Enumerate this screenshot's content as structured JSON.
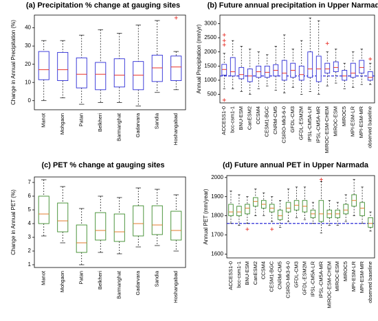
{
  "chart_data": [
    {
      "type": "box",
      "title": "(a) Precipitation % change at gauging sites",
      "y_label": "Change in Annual Precipitation (%)",
      "box_color": "#2b2bd6",
      "median_color": "#e8322b",
      "outlier_color": "#e8322b",
      "ylim": [
        -5,
        47
      ],
      "yticks": [
        0,
        10,
        20,
        30,
        40
      ],
      "categories": [
        "Manot",
        "Mohgaon",
        "Patan",
        "Belkheri",
        "Barmanghat",
        "Gadarvara",
        "Sandia",
        "Hoshangabad"
      ],
      "boxes": [
        {
          "min": 0,
          "q1": 11.5,
          "median": 17,
          "q3": 27,
          "max": 33
        },
        {
          "min": 1.5,
          "q1": 11,
          "median": 17,
          "q3": 26.5,
          "max": 33
        },
        {
          "min": -2,
          "q1": 7,
          "median": 14.5,
          "q3": 23.5,
          "max": 36
        },
        {
          "min": -1,
          "q1": 6,
          "median": 14.5,
          "q3": 21,
          "max": 39
        },
        {
          "min": -1,
          "q1": 7.5,
          "median": 14,
          "q3": 23,
          "max": 37
        },
        {
          "min": -3,
          "q1": 6,
          "median": 14,
          "q3": 21.5,
          "max": 41.5
        },
        {
          "min": 4.5,
          "q1": 10.5,
          "median": 18,
          "q3": 25,
          "max": 44
        },
        {
          "min": 6,
          "q1": 11,
          "median": 18.5,
          "q3": 24.5,
          "max": 27,
          "outliers": [
            45.5
          ]
        }
      ]
    },
    {
      "type": "box",
      "title": "(b) Future annual precipitation in Upper Narmada",
      "y_label": "Annual Precipitation (mm/yr)",
      "box_color": "#2b2bd6",
      "median_color": "#e8322b",
      "outlier_color": "#e8322b",
      "reference_line": 1150,
      "reference_color": "#2b2bd6",
      "ylim": [
        200,
        3300
      ],
      "yticks": [
        500,
        1000,
        1500,
        2000,
        2500,
        3000
      ],
      "categories": [
        "ACCESS1-0",
        "bcc-csm1-1",
        "BNU-ESM",
        "CanESM2",
        "CCSM4",
        "CESM1-BGC",
        "CNRM-CM5",
        "CSIRO-Mk3-6-0",
        "GFDL-CM3",
        "GFDL-ESM2M",
        "IPSL-CM5A-LR",
        "IPSL-CM5A-MR",
        "MIROC-ESM-CHEM",
        "MIROC-ESM",
        "MIROC5",
        "MPI-ESM-LR",
        "MPI-ESM-MR",
        "observed baseline"
      ],
      "boxes": [
        {
          "min": 700,
          "q1": 1180,
          "median": 1380,
          "q3": 1560,
          "max": 1950,
          "outliers": [
            2250,
            2400,
            2600,
            300
          ]
        },
        {
          "min": 700,
          "q1": 1150,
          "median": 1300,
          "q3": 1800,
          "max": 2400
        },
        {
          "min": 600,
          "q1": 1050,
          "median": 1200,
          "q3": 1450,
          "max": 2200
        },
        {
          "min": 500,
          "q1": 950,
          "median": 1150,
          "q3": 1400,
          "max": 2100
        },
        {
          "min": 700,
          "q1": 1100,
          "median": 1300,
          "q3": 1500,
          "max": 2000
        },
        {
          "min": 800,
          "q1": 1100,
          "median": 1280,
          "q3": 1500,
          "max": 1900
        },
        {
          "min": 650,
          "q1": 1150,
          "median": 1350,
          "q3": 1550,
          "max": 2200
        },
        {
          "min": 550,
          "q1": 1000,
          "median": 1250,
          "q3": 1700,
          "max": 2600
        },
        {
          "min": 750,
          "q1": 1100,
          "median": 1350,
          "q3": 1600,
          "max": 2100
        },
        {
          "min": 500,
          "q1": 1000,
          "median": 1200,
          "q3": 1500,
          "max": 2400
        },
        {
          "min": 600,
          "q1": 1100,
          "median": 1400,
          "q3": 2000,
          "max": 3200
        },
        {
          "min": 500,
          "q1": 950,
          "median": 1400,
          "q3": 1850,
          "max": 3100
        },
        {
          "min": 800,
          "q1": 1250,
          "median": 1400,
          "q3": 1600,
          "max": 2000,
          "outliers": [
            2300
          ]
        },
        {
          "min": 900,
          "q1": 1300,
          "median": 1450,
          "q3": 1650,
          "max": 2100
        },
        {
          "min": 700,
          "q1": 1000,
          "median": 1150,
          "q3": 1350,
          "max": 1600
        },
        {
          "min": 750,
          "q1": 1100,
          "median": 1250,
          "q3": 1600,
          "max": 2000
        },
        {
          "min": 850,
          "q1": 1250,
          "median": 1450,
          "q3": 1700,
          "max": 2100
        },
        {
          "min": 850,
          "q1": 1000,
          "median": 1100,
          "q3": 1300,
          "max": 1600,
          "outliers": [
            1750
          ]
        }
      ]
    },
    {
      "type": "box",
      "title": "(c) PET % change at gauging sites",
      "y_label": "Change in Annual PET (%)",
      "box_color": "#3a8a2a",
      "median_color": "#e07b2b",
      "outlier_color": "#e8322b",
      "ylim": [
        0.8,
        7.4
      ],
      "yticks": [
        1,
        2,
        3,
        4,
        5,
        6,
        7
      ],
      "categories": [
        "Manot",
        "Mohgaon",
        "Patan",
        "Belkheri",
        "Barmanghat",
        "Gadarvara",
        "Sandia",
        "Hoshangabad"
      ],
      "boxes": [
        {
          "min": 3.1,
          "q1": 4,
          "median": 4.7,
          "q3": 6,
          "max": 7.2
        },
        {
          "min": 2.6,
          "q1": 3.4,
          "median": 4.2,
          "q3": 5.5,
          "max": 6.7
        },
        {
          "min": 1,
          "q1": 1.9,
          "median": 2.6,
          "q3": 3.9,
          "max": 5.1
        },
        {
          "min": 1.9,
          "q1": 2.8,
          "median": 3.5,
          "q3": 4.8,
          "max": 6
        },
        {
          "min": 1.8,
          "q1": 2.7,
          "median": 3.4,
          "q3": 4.7,
          "max": 5.9
        },
        {
          "min": 2.3,
          "q1": 3.1,
          "median": 4,
          "q3": 5.3,
          "max": 6.6
        },
        {
          "min": 2.4,
          "q1": 3.2,
          "median": 3.9,
          "q3": 5.3,
          "max": 6.5
        },
        {
          "min": 2,
          "q1": 2.8,
          "median": 3.5,
          "q3": 4.9,
          "max": 6.1
        }
      ]
    },
    {
      "type": "box",
      "title": "(d) Future annual PET in Upper Narmada",
      "y_label": "Annual PET (mm/year)",
      "box_color": "#3a8a2a",
      "median_color": "#e07b2b",
      "outlier_color": "#e8322b",
      "reference_line": 1760,
      "reference_color": "#2b2bd6",
      "ylim": [
        1580,
        2010
      ],
      "yticks": [
        1600,
        1700,
        1800,
        1900,
        2000
      ],
      "categories": [
        "ACCESS1-0",
        "bcc-csm1-1",
        "BNU-ESM",
        "CanESM2",
        "CCSM4",
        "CESM1-BGC",
        "CNRM-CM5",
        "CSIRO-Mk3-6-0",
        "GFDL-CM3",
        "GFDL-ESM2M",
        "IPSL-CM5A-LR",
        "IPSL-CM5A-MR",
        "MIROC-ESM-CHEM",
        "MIROC-ESM",
        "MIROC5",
        "MPI-ESM-LR",
        "MPI-ESM-MR",
        "observed baseline"
      ],
      "boxes": [
        {
          "min": 1760,
          "q1": 1800,
          "median": 1820,
          "q3": 1860,
          "max": 1930
        },
        {
          "min": 1750,
          "q1": 1800,
          "median": 1820,
          "q3": 1850,
          "max": 1910
        },
        {
          "min": 1760,
          "q1": 1810,
          "median": 1840,
          "q3": 1860,
          "max": 1900,
          "outliers": [
            1730
          ]
        },
        {
          "min": 1800,
          "q1": 1850,
          "median": 1875,
          "q3": 1895,
          "max": 1940
        },
        {
          "min": 1800,
          "q1": 1840,
          "median": 1860,
          "q3": 1880,
          "max": 1920
        },
        {
          "min": 1770,
          "q1": 1820,
          "median": 1840,
          "q3": 1860,
          "max": 1900,
          "outliers": [
            1730
          ]
        },
        {
          "min": 1740,
          "q1": 1780,
          "median": 1800,
          "q3": 1830,
          "max": 1880
        },
        {
          "min": 1770,
          "q1": 1820,
          "median": 1840,
          "q3": 1870,
          "max": 1940
        },
        {
          "min": 1790,
          "q1": 1830,
          "median": 1855,
          "q3": 1880,
          "max": 1950
        },
        {
          "min": 1780,
          "q1": 1820,
          "median": 1850,
          "q3": 1880,
          "max": 1950
        },
        {
          "min": 1760,
          "q1": 1790,
          "median": 1810,
          "q3": 1830,
          "max": 1870
        },
        {
          "min": 1710,
          "q1": 1770,
          "median": 1810,
          "q3": 1880,
          "max": 1980,
          "outliers": [
            1990
          ]
        },
        {
          "min": 1750,
          "q1": 1790,
          "median": 1810,
          "q3": 1830,
          "max": 1880
        },
        {
          "min": 1750,
          "q1": 1790,
          "median": 1810,
          "q3": 1830,
          "max": 1870
        },
        {
          "min": 1770,
          "q1": 1810,
          "median": 1830,
          "q3": 1860,
          "max": 1910
        },
        {
          "min": 1800,
          "q1": 1850,
          "median": 1880,
          "q3": 1910,
          "max": 1990
        },
        {
          "min": 1760,
          "q1": 1800,
          "median": 1840,
          "q3": 1870,
          "max": 1950
        },
        {
          "min": 1720,
          "q1": 1740,
          "median": 1760,
          "q3": 1790,
          "max": 1820
        }
      ]
    }
  ]
}
